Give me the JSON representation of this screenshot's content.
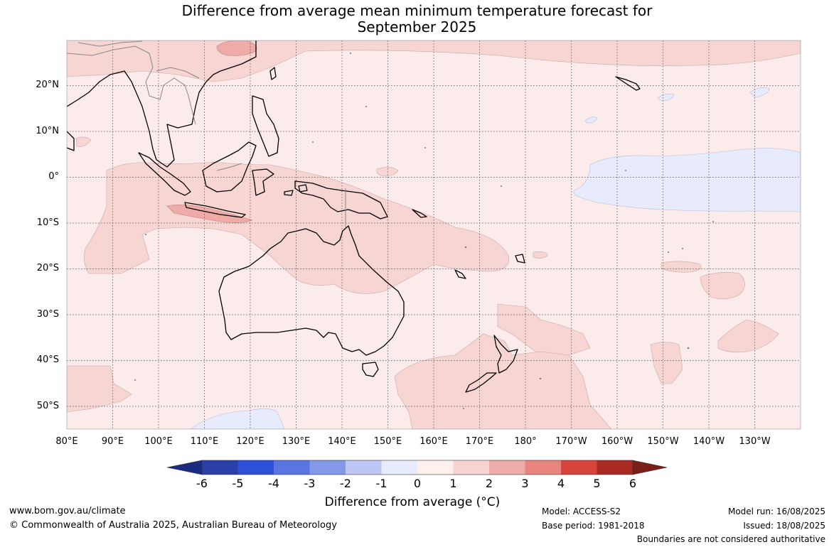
{
  "title": {
    "line1": "Difference from average mean minimum temperature forecast for",
    "line2": "September 2025"
  },
  "map": {
    "region": "Indian Ocean / Australia / Western Pacific",
    "latitude_labels": [
      "20°N",
      "10°N",
      "0°",
      "10°S",
      "20°S",
      "30°S",
      "40°S",
      "50°S"
    ],
    "longitude_labels": [
      "80°E",
      "90°E",
      "100°E",
      "110°E",
      "120°E",
      "130°E",
      "140°E",
      "150°E",
      "160°E",
      "170°E",
      "180°",
      "170°W",
      "160°W",
      "150°W",
      "140°W",
      "130°W"
    ],
    "gridlines": true,
    "colors": {
      "anomaly_0_to_1": "#fbebea",
      "anomaly_1_to_2": "#f6d5d3",
      "anomaly_2_to_3": "#eeaba7",
      "anomaly_minus1_to_0": "#e7ebfb",
      "coastline": "#000000",
      "boundaries": "#888888"
    }
  },
  "colorbar": {
    "ticks": [
      "-6",
      "-5",
      "-4",
      "-3",
      "-2",
      "-1",
      "0",
      "1",
      "2",
      "3",
      "4",
      "5",
      "6"
    ],
    "colors": [
      "#1c2b80",
      "#2a3fa8",
      "#2e4fd8",
      "#5b75e0",
      "#8598e8",
      "#bec6f3",
      "#e8ebfc",
      "#fdf0ee",
      "#f7d4d2",
      "#eeaca8",
      "#e6847d",
      "#d6443b",
      "#a92a23",
      "#7a1e18"
    ],
    "label": "Difference from average (°C)"
  },
  "footer": {
    "url": "www.bom.gov.au/climate",
    "copyright": "© Commonwealth of Australia 2025, Australian Bureau of Meteorology",
    "model": "Model: ACCESS-S2",
    "base_period": "Base period: 1981-2018",
    "model_run": "Model run: 16/08/2025",
    "issued": "Issued: 18/08/2025",
    "disclaimer": "Boundaries are not considered authoritative"
  }
}
